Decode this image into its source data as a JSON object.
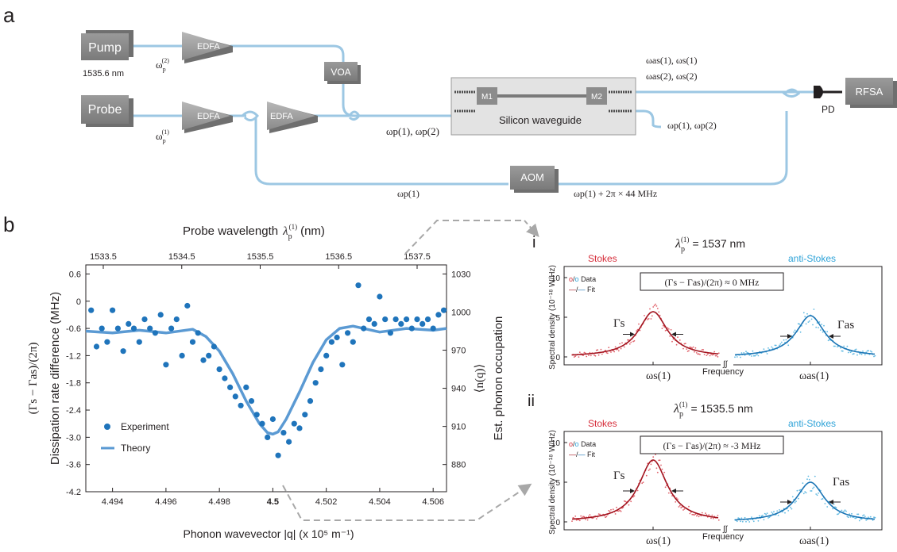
{
  "panel_a": {
    "label": "a",
    "pump_label": "Pump",
    "pump_wavelength": "1535.6 nm",
    "pump_omega": "ω",
    "pump_omega_sup": "(2)",
    "pump_omega_sub": "p",
    "probe_label": "Probe",
    "probe_omega": "ω",
    "probe_omega_sup": "(1)",
    "probe_omega_sub": "p",
    "edfa1": "EDFA",
    "edfa2": "EDFA",
    "edfa3": "EDFA",
    "voa": "VOA",
    "aom": "AOM",
    "m1": "M1",
    "m2": "M2",
    "waveguide_label": "Silicon waveguide",
    "pd_label": "PD",
    "rfsa_label": "RFSA",
    "input_fields": "ωp(1), ωp(2)",
    "output_fields_line1": "ωas(1), ωs(1)",
    "output_fields_line2": "ωas(2), ωs(2)",
    "transmitted_fields": "ωp(1), ωp(2)",
    "reference_field": "ωp(1)",
    "shifted_field": "ωp(1) + 2π × 44  MHz"
  },
  "panel_b": {
    "label": "b",
    "top_axis_title": "Probe wavelength",
    "top_axis_title_var": "λ",
    "top_axis_unit": "(nm)",
    "top_ticks": [
      "1533.5",
      "1534.5",
      "1535.5",
      "1536.5",
      "1537.5"
    ],
    "left_axis_title": "Dissipation rate difference (MHz)",
    "left_axis_expr": "(Γs − Γas)/(2π)",
    "right_axis_title": "Est. phonon occupation",
    "right_axis_expr": "⟨n(q)⟩",
    "bottom_axis_title": "Phonon wavevector |q| (x 10⁵ m⁻¹)",
    "left_ticks": [
      "0.6",
      "0",
      "-0.6",
      "-1.2",
      "-1.8",
      "-2.4",
      "-3.0",
      "-3.6",
      "-4.2"
    ],
    "right_ticks": [
      "1030",
      "1000",
      "970",
      "940",
      "910",
      "880"
    ],
    "bottom_ticks": [
      "4.494",
      "4.496",
      "4.498",
      "4.5",
      "4.502",
      "4.504",
      "4.506"
    ],
    "legend_experiment": "Experiment",
    "legend_theory": "Theory",
    "marker_color": "#1f74bb",
    "theory_color": "#5b9ad3"
  },
  "panel_i": {
    "label": "i",
    "wavelength": "λp(1) = 1537 nm",
    "wavelength_value": "= 1537 nm",
    "stokes_label": "Stokes",
    "antistokes_label": "anti-Stokes",
    "legend_data": "Data",
    "legend_fit": "Fit",
    "box_text": "(Γs − Γas)/(2π) ≈ 0 MHz",
    "box_value": "≈ 0 MHz",
    "y_axis_title": "Spectral density (10⁻¹⁸ W/Hz)",
    "y_ticks": [
      "10",
      "5",
      "0"
    ],
    "gamma_s": "Γs",
    "gamma_as": "Γas",
    "freq_label": "Frequency",
    "omega_s": "ωs(1)",
    "omega_as": "ωas(1)"
  },
  "panel_ii": {
    "label": "ii",
    "wavelength": "λp(1) = 1535.5 nm",
    "wavelength_value": "= 1535.5 nm",
    "stokes_label": "Stokes",
    "antistokes_label": "anti-Stokes",
    "legend_data": "Data",
    "legend_fit": "Fit",
    "box_text": "(Γs − Γas)/(2π) ≈ -3 MHz",
    "box_value": "≈ -3 MHz",
    "y_axis_title": "Spectral density (10⁻¹⁸ W/Hz)",
    "y_ticks": [
      "10",
      "5",
      "0"
    ],
    "gamma_s": "Γs",
    "gamma_as": "Γas",
    "freq_label": "Frequency",
    "omega_s": "ωs(1)",
    "omega_as": "ωas(1)"
  },
  "colors": {
    "fiber": "#9cc7e3",
    "box_gray": "#8c8c8c",
    "stokes_red": "#d62d3a",
    "antistokes_blue": "#2ea3d8",
    "fit_red": "#a3141f",
    "fit_blue": "#1b75b5"
  },
  "chart_data": [
    {
      "type": "scatter",
      "title": "",
      "xlabel": "Phonon wavevector |q| (x 10⁵ m⁻¹)",
      "ylabel": "Dissipation rate difference (MHz)",
      "xlim": [
        4.493,
        4.5065
      ],
      "ylim": [
        -4.2,
        0.8
      ],
      "grid": false,
      "legend": "bottom-left",
      "series": [
        {
          "name": "Experiment",
          "x": [
            4.4932,
            4.4934,
            4.4936,
            4.4938,
            4.494,
            4.4942,
            4.4944,
            4.4946,
            4.4948,
            4.495,
            4.4952,
            4.4954,
            4.4956,
            4.4958,
            4.496,
            4.4962,
            4.4964,
            4.4966,
            4.4968,
            4.497,
            4.4972,
            4.4974,
            4.4976,
            4.4978,
            4.498,
            4.4982,
            4.4984,
            4.4986,
            4.4988,
            4.499,
            4.4992,
            4.4994,
            4.4996,
            4.4998,
            4.5,
            4.5002,
            4.5004,
            4.5006,
            4.5008,
            4.501,
            4.5012,
            4.5014,
            4.5016,
            4.5018,
            4.502,
            4.5022,
            4.5024,
            4.5026,
            4.5028,
            4.503,
            4.5032,
            4.5034,
            4.5036,
            4.5038,
            4.504,
            4.5042,
            4.5044,
            4.5046,
            4.5048,
            4.505,
            4.5052,
            4.5054,
            4.5056,
            4.5058,
            4.506,
            4.5062,
            4.5064
          ],
          "y": [
            -0.2,
            -1.0,
            -0.6,
            -0.9,
            -0.2,
            -0.6,
            -1.1,
            -0.5,
            -0.6,
            -0.9,
            -0.4,
            -0.6,
            -0.7,
            -0.3,
            -1.4,
            -0.6,
            -0.4,
            -1.2,
            -0.1,
            -0.9,
            -0.7,
            -1.3,
            -1.2,
            -1.0,
            -1.5,
            -1.7,
            -1.9,
            -2.1,
            -2.3,
            -1.9,
            -2.2,
            -2.5,
            -2.7,
            -3.0,
            -2.6,
            -3.4,
            -2.9,
            -3.1,
            -2.7,
            -2.8,
            -2.5,
            -2.2,
            -1.8,
            -1.5,
            -1.2,
            -0.9,
            -0.8,
            -1.4,
            -0.7,
            -0.9,
            0.35,
            -0.6,
            -0.4,
            -0.5,
            0.1,
            -0.4,
            -0.7,
            -0.4,
            -0.5,
            -0.4,
            -0.6,
            -0.4,
            -0.5,
            -0.4,
            -0.6,
            -0.3,
            -0.2
          ]
        },
        {
          "name": "Theory",
          "x": [
            4.493,
            4.494,
            4.495,
            4.496,
            4.497,
            4.4975,
            4.498,
            4.4985,
            4.499,
            4.4995,
            4.4998,
            4.5,
            4.5002,
            4.5005,
            4.501,
            4.5015,
            4.502,
            4.5025,
            4.503,
            4.504,
            4.505,
            4.506,
            4.5065
          ],
          "y": [
            -0.66,
            -0.7,
            -0.64,
            -0.7,
            -0.62,
            -0.78,
            -1.1,
            -1.6,
            -2.2,
            -2.7,
            -2.9,
            -2.93,
            -2.88,
            -2.6,
            -2.0,
            -1.35,
            -0.85,
            -0.6,
            -0.55,
            -0.68,
            -0.6,
            -0.64,
            -0.6
          ]
        }
      ]
    },
    {
      "type": "line",
      "title": "λp(1) = 1537 nm",
      "xlabel": "Frequency",
      "ylabel": "Spectral density (10⁻¹⁸ W/Hz)",
      "ylim": [
        0,
        10
      ],
      "legend": "top-left",
      "series": [
        {
          "name": "Stokes",
          "peak": 5.7
        },
        {
          "name": "anti-Stokes",
          "peak": 5.2
        }
      ]
    },
    {
      "type": "line",
      "title": "λp(1) = 1535.5 nm",
      "xlabel": "Frequency",
      "ylabel": "Spectral density (10⁻¹⁸ W/Hz)",
      "ylim": [
        0,
        10
      ],
      "legend": "top-left",
      "series": [
        {
          "name": "Stokes",
          "peak": 7.8
        },
        {
          "name": "anti-Stokes",
          "peak": 5.0
        }
      ]
    }
  ]
}
